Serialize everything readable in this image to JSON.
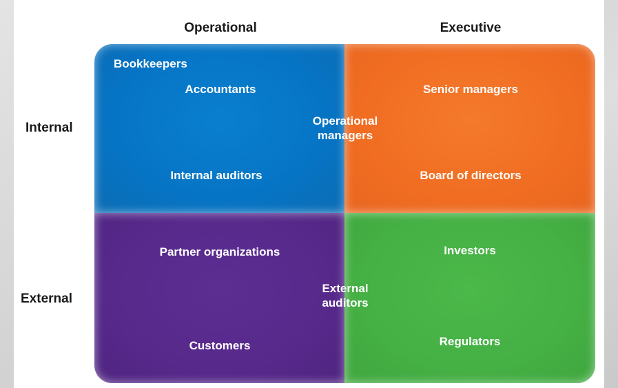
{
  "columns": {
    "operational": "Operational",
    "executive": "Executive"
  },
  "rows": {
    "internal": "Internal",
    "external": "External"
  },
  "quadrants": {
    "internal_operational": {
      "color": "#0674c4",
      "items": [
        "Bookkeepers",
        "Accountants",
        "Internal auditors"
      ]
    },
    "internal_executive": {
      "color": "#f06d22",
      "items": [
        "Senior managers",
        "Board of directors"
      ]
    },
    "external_operational": {
      "color": "#57298b",
      "items": [
        "Partner organizations",
        "Customers"
      ]
    },
    "external_executive": {
      "color": "#45b044",
      "items": [
        "Investors",
        "Regulators"
      ]
    }
  },
  "spanning": {
    "internal": [
      "Operational",
      "managers"
    ],
    "external": [
      "External",
      "auditors"
    ]
  }
}
